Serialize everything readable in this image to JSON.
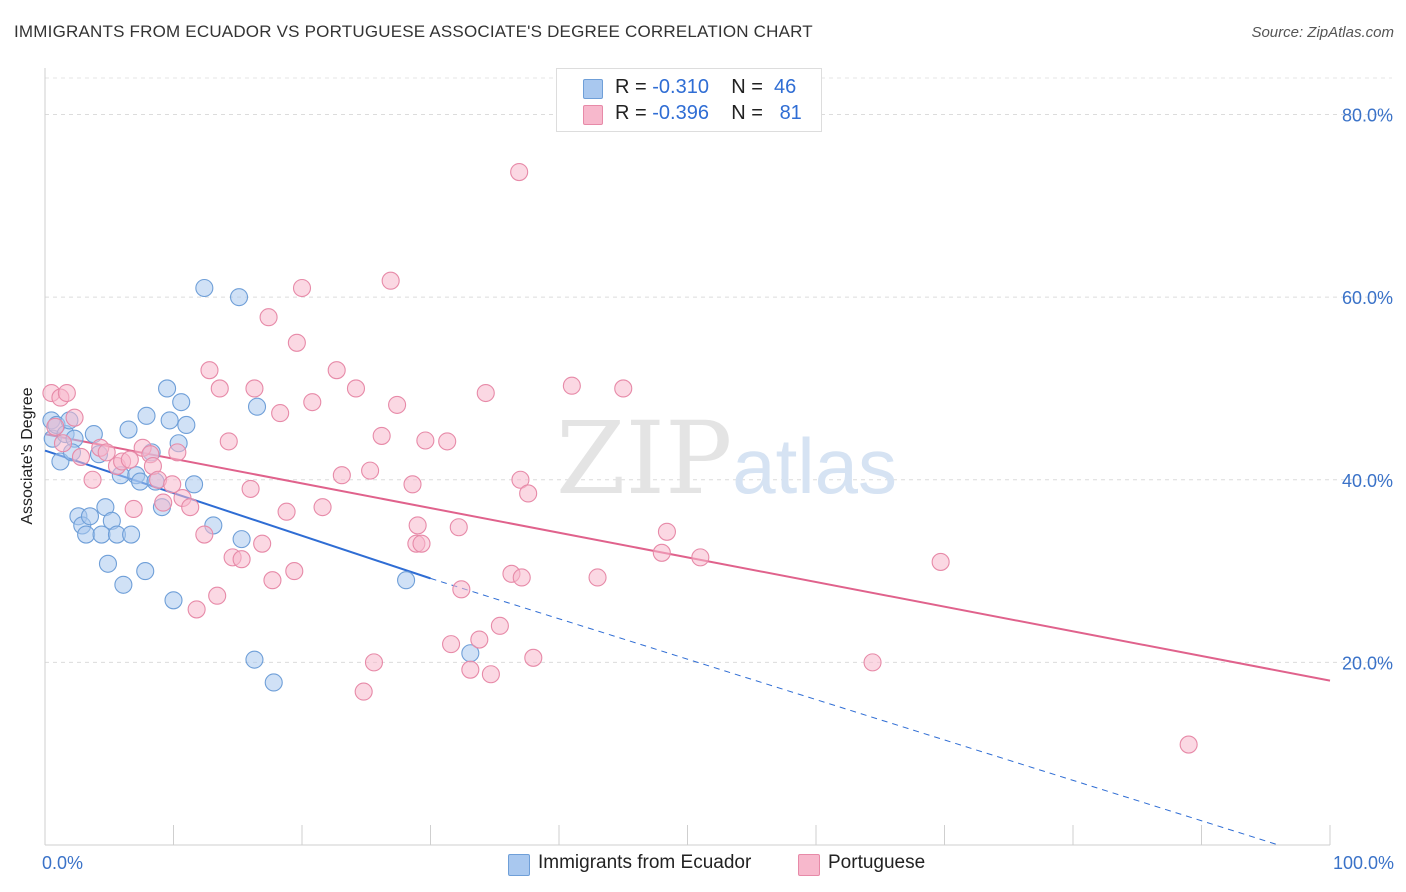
{
  "header": {
    "title": "IMMIGRANTS FROM ECUADOR VS PORTUGUESE ASSOCIATE'S DEGREE CORRELATION CHART",
    "source": "Source: ZipAtlas.com"
  },
  "watermark": {
    "zip": "ZIP",
    "atlas": "atlas"
  },
  "stats": [
    {
      "r_label": "R =",
      "r": "-0.310",
      "n_label": "N =",
      "n": "46",
      "color": "#a9c8ef",
      "border": "#6f9fd8"
    },
    {
      "r_label": "R =",
      "r": "-0.396",
      "n_label": "N =",
      "n": "81",
      "color": "#f7b8cc",
      "border": "#e78aa8"
    }
  ],
  "legend": [
    {
      "label": "Immigrants from Ecuador",
      "color": "#a9c8ef",
      "border": "#6f9fd8"
    },
    {
      "label": "Portuguese",
      "color": "#f7b8cc",
      "border": "#e78aa8"
    }
  ],
  "chart_data": {
    "type": "scatter",
    "title": "IMMIGRANTS FROM ECUADOR VS PORTUGUESE ASSOCIATE'S DEGREE CORRELATION CHART",
    "xlabel": "",
    "ylabel": "Associate's Degree",
    "xlim": [
      0,
      100
    ],
    "ylim": [
      0,
      84
    ],
    "x_tick_labels": [
      "0.0%",
      "100.0%"
    ],
    "y_ticks": [
      20,
      40,
      60,
      80
    ],
    "y_tick_labels": [
      "20.0%",
      "40.0%",
      "60.0%",
      "80.0%"
    ],
    "grid": true,
    "legend_position": "bottom",
    "series": [
      {
        "name": "Immigrants from Ecuador",
        "color": "#6f9fd8",
        "fill": "#a9c8ef",
        "points": [
          [
            0.5,
            46.5
          ],
          [
            0.6,
            44.5
          ],
          [
            0.9,
            46.0
          ],
          [
            1.2,
            42.0
          ],
          [
            1.6,
            45.0
          ],
          [
            1.9,
            46.5
          ],
          [
            2.3,
            44.5
          ],
          [
            2.1,
            43.0
          ],
          [
            2.6,
            36.0
          ],
          [
            2.9,
            35.0
          ],
          [
            3.2,
            34.0
          ],
          [
            3.5,
            36.0
          ],
          [
            3.8,
            45.0
          ],
          [
            4.2,
            42.8
          ],
          [
            4.4,
            34.0
          ],
          [
            4.7,
            37.0
          ],
          [
            4.9,
            30.8
          ],
          [
            5.2,
            35.5
          ],
          [
            5.6,
            34.0
          ],
          [
            5.9,
            40.5
          ],
          [
            6.1,
            28.5
          ],
          [
            6.5,
            45.5
          ],
          [
            6.7,
            34.0
          ],
          [
            7.1,
            40.5
          ],
          [
            7.4,
            39.8
          ],
          [
            7.8,
            30.0
          ],
          [
            7.9,
            47.0
          ],
          [
            8.3,
            43.0
          ],
          [
            8.6,
            39.8
          ],
          [
            9.1,
            37.0
          ],
          [
            9.5,
            50.0
          ],
          [
            9.7,
            46.5
          ],
          [
            10.0,
            26.8
          ],
          [
            10.4,
            44.0
          ],
          [
            10.6,
            48.5
          ],
          [
            11.0,
            46.0
          ],
          [
            11.6,
            39.5
          ],
          [
            12.4,
            61.0
          ],
          [
            13.1,
            35.0
          ],
          [
            15.1,
            60.0
          ],
          [
            15.3,
            33.5
          ],
          [
            16.3,
            20.3
          ],
          [
            16.5,
            48.0
          ],
          [
            17.8,
            17.8
          ],
          [
            28.1,
            29.0
          ],
          [
            33.1,
            21.0
          ]
        ]
      },
      {
        "name": "Portuguese",
        "color": "#e78aa8",
        "fill": "#f7b8cc",
        "points": [
          [
            0.5,
            49.5
          ],
          [
            0.8,
            45.8
          ],
          [
            1.2,
            49.0
          ],
          [
            1.4,
            44.0
          ],
          [
            1.7,
            49.5
          ],
          [
            2.3,
            46.8
          ],
          [
            2.8,
            42.5
          ],
          [
            3.7,
            40.0
          ],
          [
            4.3,
            43.5
          ],
          [
            4.8,
            43.0
          ],
          [
            5.6,
            41.5
          ],
          [
            6.0,
            42.0
          ],
          [
            6.6,
            42.2
          ],
          [
            6.9,
            36.8
          ],
          [
            7.6,
            43.5
          ],
          [
            8.2,
            42.8
          ],
          [
            8.4,
            41.5
          ],
          [
            8.8,
            40.0
          ],
          [
            9.2,
            37.5
          ],
          [
            9.9,
            39.5
          ],
          [
            10.3,
            43.0
          ],
          [
            10.7,
            38.0
          ],
          [
            11.3,
            37.0
          ],
          [
            11.8,
            25.8
          ],
          [
            12.4,
            34.0
          ],
          [
            12.8,
            52.0
          ],
          [
            13.4,
            27.3
          ],
          [
            13.6,
            50.0
          ],
          [
            14.3,
            44.2
          ],
          [
            14.6,
            31.5
          ],
          [
            15.3,
            31.3
          ],
          [
            16.0,
            39.0
          ],
          [
            16.3,
            50.0
          ],
          [
            16.9,
            33.0
          ],
          [
            17.4,
            57.8
          ],
          [
            17.7,
            29.0
          ],
          [
            18.3,
            47.3
          ],
          [
            18.8,
            36.5
          ],
          [
            19.4,
            30.0
          ],
          [
            19.6,
            55.0
          ],
          [
            20.0,
            61.0
          ],
          [
            20.8,
            48.5
          ],
          [
            21.6,
            37.0
          ],
          [
            22.7,
            52.0
          ],
          [
            23.1,
            40.5
          ],
          [
            24.2,
            50.0
          ],
          [
            24.8,
            16.8
          ],
          [
            25.3,
            41.0
          ],
          [
            25.6,
            20.0
          ],
          [
            26.2,
            44.8
          ],
          [
            26.9,
            61.8
          ],
          [
            27.4,
            48.2
          ],
          [
            28.6,
            39.5
          ],
          [
            28.9,
            33.0
          ],
          [
            29.3,
            33.0
          ],
          [
            29.6,
            44.3
          ],
          [
            29.0,
            35.0
          ],
          [
            31.3,
            44.2
          ],
          [
            31.6,
            22.0
          ],
          [
            32.2,
            34.8
          ],
          [
            32.4,
            28.0
          ],
          [
            33.1,
            19.2
          ],
          [
            33.8,
            22.5
          ],
          [
            34.3,
            49.5
          ],
          [
            34.7,
            18.7
          ],
          [
            35.4,
            24.0
          ],
          [
            36.3,
            29.7
          ],
          [
            37.1,
            29.3
          ],
          [
            37.0,
            40.0
          ],
          [
            37.6,
            38.5
          ],
          [
            38.0,
            20.5
          ],
          [
            36.9,
            73.7
          ],
          [
            41.0,
            50.3
          ],
          [
            43.0,
            29.3
          ],
          [
            45.0,
            50.0
          ],
          [
            48.0,
            32.0
          ],
          [
            48.4,
            34.3
          ],
          [
            51.0,
            31.5
          ],
          [
            64.4,
            20.0
          ],
          [
            69.7,
            31.0
          ],
          [
            89.0,
            11.0
          ]
        ]
      }
    ],
    "trendlines": [
      {
        "series": "Immigrants from Ecuador",
        "x": [
          0,
          30
        ],
        "y": [
          43.2,
          29.2
        ],
        "dashed_extension_to": [
          96,
          0
        ]
      },
      {
        "series": "Portuguese",
        "x": [
          0,
          100
        ],
        "y": [
          45.0,
          18.0
        ]
      }
    ]
  }
}
